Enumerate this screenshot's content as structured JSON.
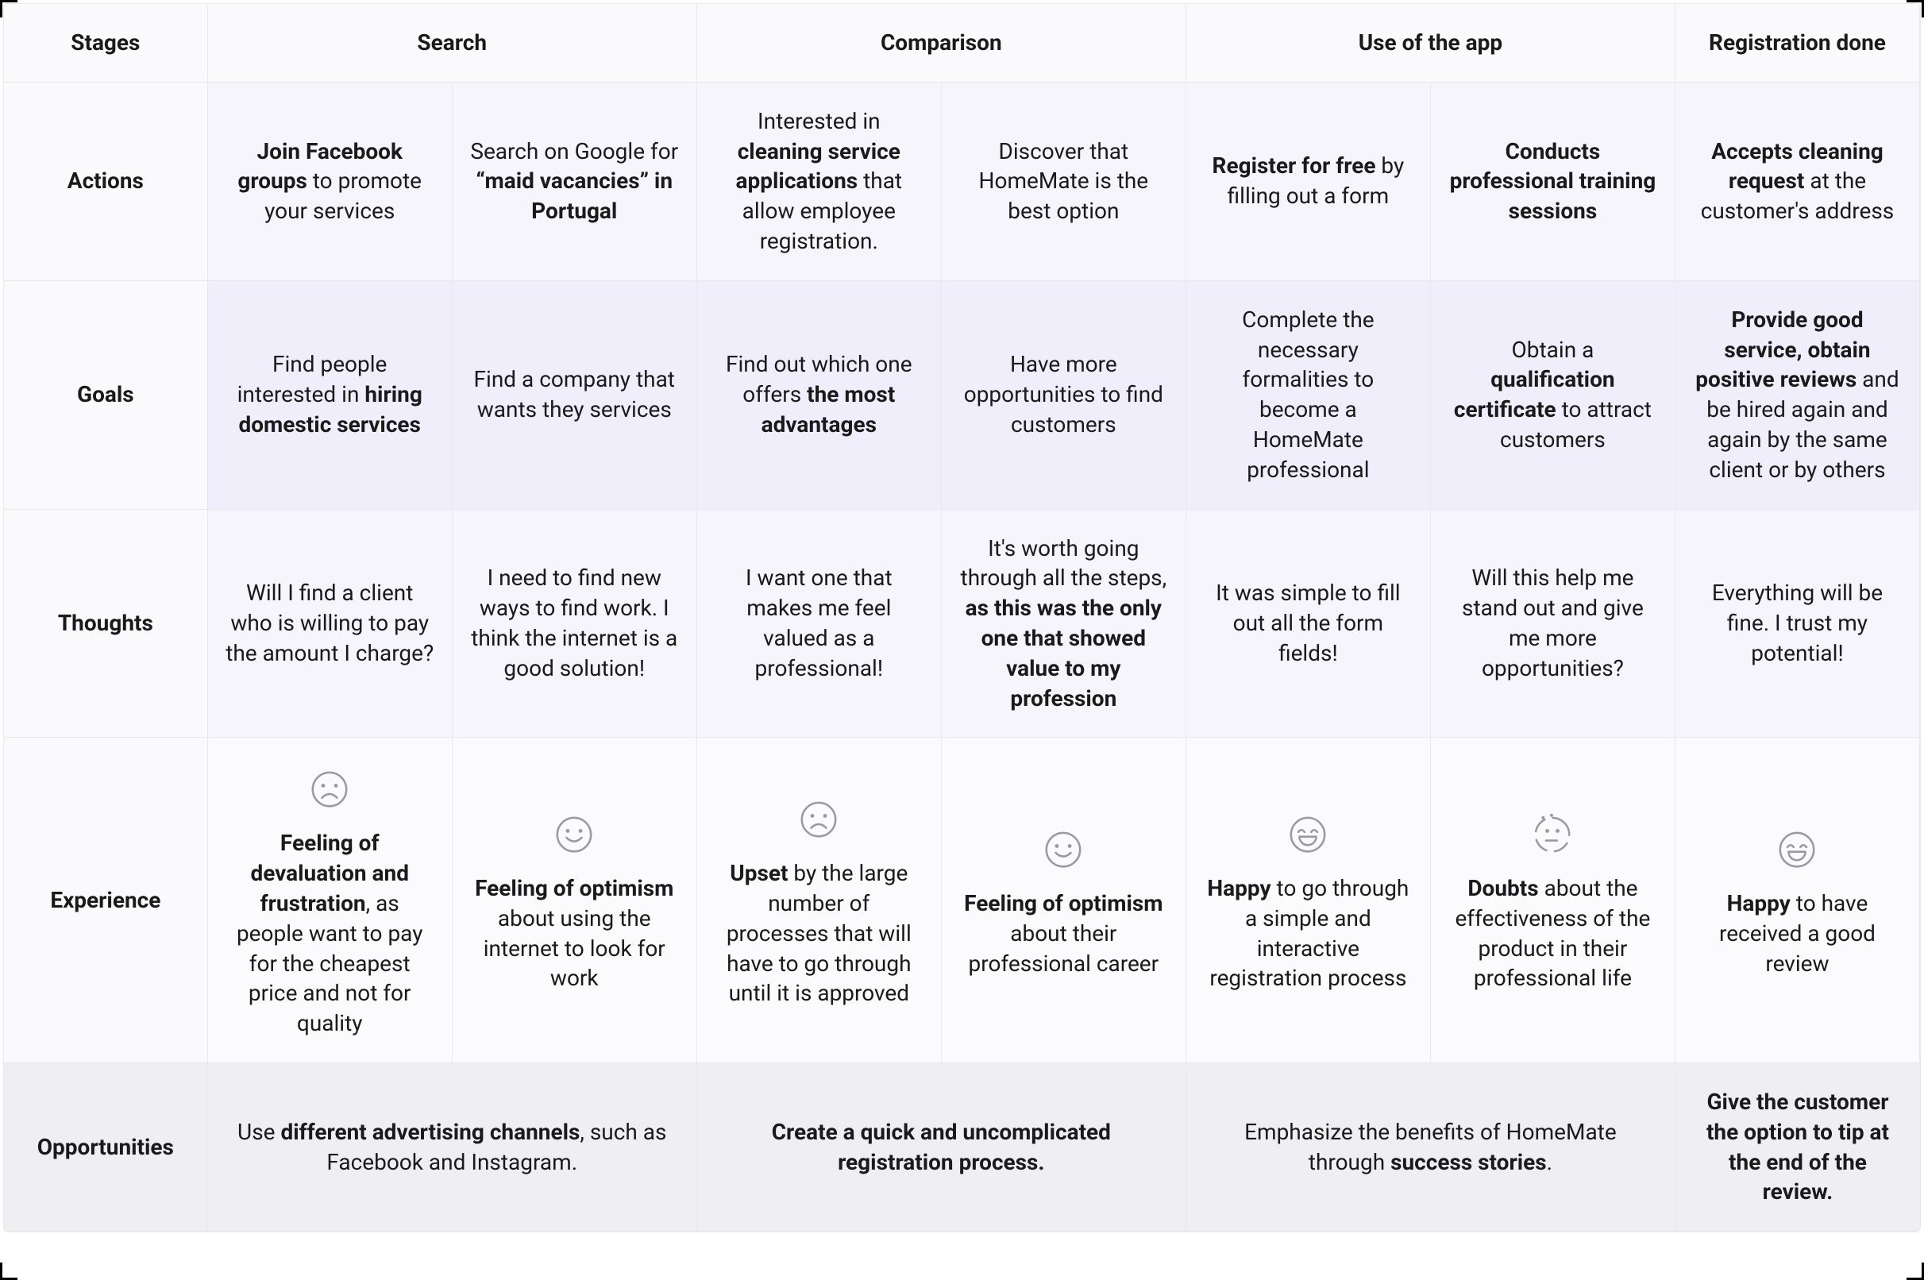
{
  "colors": {
    "border": "#e8e8ee",
    "headerBg": "#fafafc",
    "tintLight": "#f6f5fb",
    "tintMed": "#f1eefb",
    "tintExp": "#fbfbfd",
    "tintOpp": "#efeff2",
    "iconStroke": "#9a9aa2",
    "text": "#1a1a1a"
  },
  "typography": {
    "baseFontSizePx": 28,
    "headerWeight": 700,
    "bodyWeight": 400,
    "boldWeight": 700,
    "lineHeight": 1.35,
    "fontFamily": "system-ui"
  },
  "layout": {
    "widthPx": 2423,
    "heightPx": 1612,
    "columns": 8,
    "rowLabelColSpan": 1,
    "stageGroups": [
      {
        "label": "Search",
        "span": 2
      },
      {
        "label": "Comparison",
        "span": 2
      },
      {
        "label": "Use of the app",
        "span": 2
      },
      {
        "label": "Registration done",
        "span": 1
      }
    ],
    "stagesHeaderLabel": "Stages"
  },
  "rows": {
    "actions": {
      "label": "Actions",
      "cells": [
        {
          "html": "<b>Join Facebook groups</b> to promote your services"
        },
        {
          "html": "Search on Google for <b>“maid vacancies” in Portugal</b>"
        },
        {
          "html": "Interested in <b>cleaning service applications</b> that allow employee registration."
        },
        {
          "html": "Discover that HomeMate is the best option"
        },
        {
          "html": "<b>Register for free</b> by filling out a form"
        },
        {
          "html": "<b>Conducts professional training sessions</b>"
        },
        {
          "html": "<b>Accepts cleaning request</b> at the customer's address"
        }
      ]
    },
    "goals": {
      "label": "Goals",
      "cells": [
        {
          "html": "Find people interested in <b>hiring domestic services</b>"
        },
        {
          "html": "Find a company that wants they services"
        },
        {
          "html": "Find out which one offers <b>the most advantages</b>"
        },
        {
          "html": "Have more opportunities to find customers"
        },
        {
          "html": "Complete the necessary formalities to become a HomeMate professional"
        },
        {
          "html": "Obtain a <b>qualification certificate</b> to attract customers"
        },
        {
          "html": "<b>Provide good service, obtain positive reviews</b> and be hired again and again by the same client or by others"
        }
      ]
    },
    "thoughts": {
      "label": "Thoughts",
      "cells": [
        {
          "html": "Will I find a client who is willing to pay the amount I charge?"
        },
        {
          "html": "I need to find new ways to find work. I think the internet is a good solution!"
        },
        {
          "html": "I want one that makes me feel valued as a professional!"
        },
        {
          "html": "It's worth going through all the steps, <b>as this was the only one that showed value to my profession</b>"
        },
        {
          "html": "It was simple to fill out all the form fields!"
        },
        {
          "html": "Will this help me stand out and give me more opportunities?"
        },
        {
          "html": "Everything will be fine. I trust my potential!"
        }
      ]
    },
    "experience": {
      "label": "Experience",
      "cells": [
        {
          "emotion": "sad",
          "html": "<b>Feeling of devaluation and frustration</b>, as people want to pay for the cheapest price and not for quality"
        },
        {
          "emotion": "neutral",
          "html": "<b>Feeling of optimism</b> about using the internet to look for work"
        },
        {
          "emotion": "sad",
          "html": "<b>Upset</b> by the large number of processes that will have to go through until it is approved"
        },
        {
          "emotion": "neutral",
          "html": "<b>Feeling of optimism</b> about their professional career"
        },
        {
          "emotion": "happy",
          "html": "<b>Happy</b> to go through a simple and interactive registration process"
        },
        {
          "emotion": "confused",
          "html": "<b>Doubts</b> about the effectiveness of the product in their professional life"
        },
        {
          "emotion": "happy",
          "html": "<b>Happy</b> to have received a good review"
        }
      ]
    },
    "opportunities": {
      "label": "Opportunities",
      "cells": [
        {
          "span": 2,
          "html": "Use <b>different advertising channels</b>, such as Facebook and Instagram."
        },
        {
          "span": 2,
          "html": "<b>Create a quick and uncomplicated registration process.</b>"
        },
        {
          "span": 2,
          "html": "Emphasize the benefits of HomeMate through <b>success stories</b>."
        },
        {
          "span": 1,
          "html": "<b>Give the customer the option to tip at the end of the review.</b>"
        }
      ]
    }
  },
  "icons": {
    "strokeColor": "#9a9aa2",
    "strokeWidth": 3,
    "sizePx": 56,
    "emotions": {
      "sad": "frown-face",
      "neutral": "smile-face",
      "happy": "grin-face",
      "confused": "thinking-face"
    }
  }
}
